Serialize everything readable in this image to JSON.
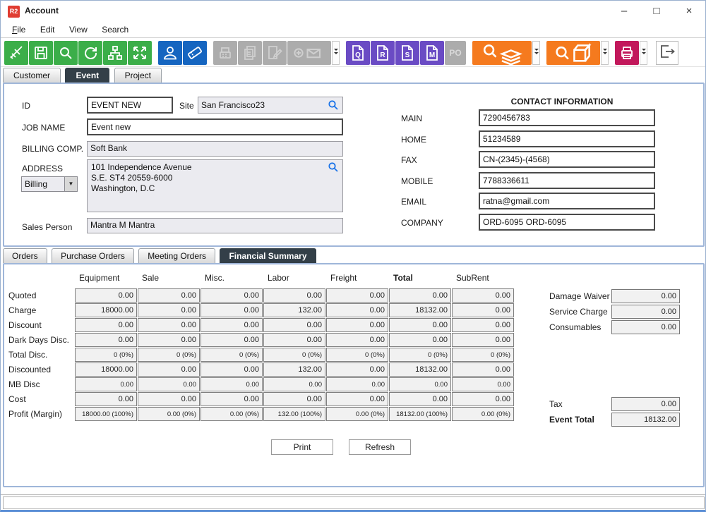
{
  "window": {
    "title": "Account",
    "logo": "R2",
    "controls": {
      "minimize": "–",
      "maximize": "□",
      "close": "×"
    }
  },
  "menu": {
    "items": [
      "File",
      "Edit",
      "View",
      "Search"
    ]
  },
  "toolbar": {
    "doc_letters": {
      "q": "Q",
      "r": "R",
      "s": "S",
      "m": "M",
      "po": "PO"
    },
    "buttons": [
      {
        "name": "sweep",
        "group": "green",
        "enabled": true
      },
      {
        "name": "save",
        "group": "green",
        "enabled": true
      },
      {
        "name": "search",
        "group": "green",
        "enabled": true
      },
      {
        "name": "refresh",
        "group": "green",
        "enabled": true
      },
      {
        "name": "hierarchy",
        "group": "green",
        "enabled": true
      },
      {
        "name": "expand",
        "group": "green",
        "enabled": true
      },
      {
        "name": "contact-person",
        "group": "blue",
        "enabled": true
      },
      {
        "name": "event-ticket",
        "group": "blue",
        "enabled": true
      },
      {
        "name": "register",
        "group": "gray",
        "enabled": false
      },
      {
        "name": "copy-documents",
        "group": "gray",
        "enabled": false
      },
      {
        "name": "edit-document",
        "group": "gray",
        "enabled": false
      },
      {
        "name": "add-mail",
        "group": "gray",
        "enabled": false
      },
      {
        "name": "quote-document",
        "group": "purple",
        "enabled": true
      },
      {
        "name": "reservation-document",
        "group": "purple",
        "enabled": true
      },
      {
        "name": "show-document",
        "group": "purple",
        "enabled": true
      },
      {
        "name": "meeting-document",
        "group": "purple",
        "enabled": true
      },
      {
        "name": "purchase-order",
        "group": "gray",
        "enabled": false
      },
      {
        "name": "search-orders",
        "group": "orange",
        "enabled": true
      },
      {
        "name": "search-items",
        "group": "orange",
        "enabled": true
      },
      {
        "name": "print",
        "group": "crimson",
        "enabled": true
      },
      {
        "name": "exit",
        "group": "white",
        "enabled": true
      }
    ]
  },
  "tabs": {
    "items": [
      "Customer",
      "Event",
      "Project"
    ],
    "selected": "Event"
  },
  "form": {
    "id": {
      "label": "ID",
      "value": "EVENT NEW"
    },
    "site": {
      "label": "Site",
      "value": "San Francisco23"
    },
    "job_name": {
      "label": "JOB NAME",
      "value": "Event new"
    },
    "billing_comp": {
      "label": "BILLING COMP.",
      "value": "Soft Bank"
    },
    "address": {
      "label": "ADDRESS",
      "type": "Billing",
      "lines": [
        "101 Independence Avenue",
        "S.E. ST4 20559-6000",
        "Washington, D.C"
      ]
    },
    "sales_person": {
      "label": "Sales Person",
      "value": "Mantra M Mantra"
    }
  },
  "contact": {
    "title": "CONTACT INFORMATION",
    "fields": [
      {
        "label": "MAIN",
        "value": "7290456783"
      },
      {
        "label": "HOME",
        "value": "51234589"
      },
      {
        "label": "FAX",
        "value": "CN-(2345)-(4568)"
      },
      {
        "label": "MOBILE",
        "value": "7788336611"
      },
      {
        "label": "EMAIL",
        "value": "ratna@gmail.com"
      },
      {
        "label": "COMPANY",
        "value": "ORD-6095 ORD-6095"
      }
    ]
  },
  "subtabs": {
    "items": [
      "Orders",
      "Purchase Orders",
      "Meeting Orders",
      "Financial Summary"
    ],
    "selected": "Financial Summary"
  },
  "financial": {
    "columns": [
      {
        "label": "Equipment",
        "bold": false
      },
      {
        "label": "Sale",
        "bold": false
      },
      {
        "label": "Misc.",
        "bold": false
      },
      {
        "label": "Labor",
        "bold": false
      },
      {
        "label": "Freight",
        "bold": false
      },
      {
        "label": "Total",
        "bold": true
      },
      {
        "label": "SubRent",
        "bold": false
      }
    ],
    "rows": [
      {
        "label": "Quoted",
        "small": false,
        "values": [
          "0.00",
          "0.00",
          "0.00",
          "0.00",
          "0.00",
          "0.00",
          "0.00"
        ]
      },
      {
        "label": "Charge",
        "small": false,
        "values": [
          "18000.00",
          "0.00",
          "0.00",
          "132.00",
          "0.00",
          "18132.00",
          "0.00"
        ]
      },
      {
        "label": "Discount",
        "small": false,
        "values": [
          "0.00",
          "0.00",
          "0.00",
          "0.00",
          "0.00",
          "0.00",
          "0.00"
        ]
      },
      {
        "label": "Dark Days Disc.",
        "small": false,
        "values": [
          "0.00",
          "0.00",
          "0.00",
          "0.00",
          "0.00",
          "0.00",
          "0.00"
        ]
      },
      {
        "label": "Total Disc.",
        "small": true,
        "values": [
          "0 (0%)",
          "0 (0%)",
          "0 (0%)",
          "0 (0%)",
          "0 (0%)",
          "0 (0%)",
          "0 (0%)"
        ]
      },
      {
        "label": "Discounted",
        "small": false,
        "values": [
          "18000.00",
          "0.00",
          "0.00",
          "132.00",
          "0.00",
          "18132.00",
          "0.00"
        ]
      },
      {
        "label": "MB Disc",
        "small": true,
        "values": [
          "0.00",
          "0.00",
          "0.00",
          "0.00",
          "0.00",
          "0.00",
          "0.00"
        ]
      },
      {
        "label": "Cost",
        "small": false,
        "values": [
          "0.00",
          "0.00",
          "0.00",
          "0.00",
          "0.00",
          "0.00",
          "0.00"
        ]
      },
      {
        "label": "Profit (Margin)",
        "small": true,
        "values": [
          "18000.00 (100%)",
          "0.00 (0%)",
          "0.00 (0%)",
          "132.00 (100%)",
          "0.00 (0%)",
          "18132.00 (100%)",
          "0.00 (0%)"
        ]
      }
    ],
    "side": [
      {
        "label": "Damage Waiver",
        "value": "0.00"
      },
      {
        "label": "Service Charge",
        "value": "0.00"
      },
      {
        "label": "Consumables",
        "value": "0.00"
      }
    ],
    "tax": {
      "label": "Tax",
      "value": "0.00"
    },
    "event_total": {
      "label": "Event Total",
      "value": "18132.00"
    }
  },
  "buttons": {
    "print": "Print",
    "refresh": "Refresh"
  },
  "colors": {
    "accent_green": "#3BAE49",
    "accent_blue": "#1565C0",
    "accent_purple": "#6A4BC4",
    "accent_orange": "#F57A1E",
    "accent_crimson": "#C2185B",
    "logo_red": "#E03C31",
    "tab_selected": "#333F48",
    "panel_border": "#9FB6D9",
    "search_icon_blue": "#1A73E8"
  }
}
